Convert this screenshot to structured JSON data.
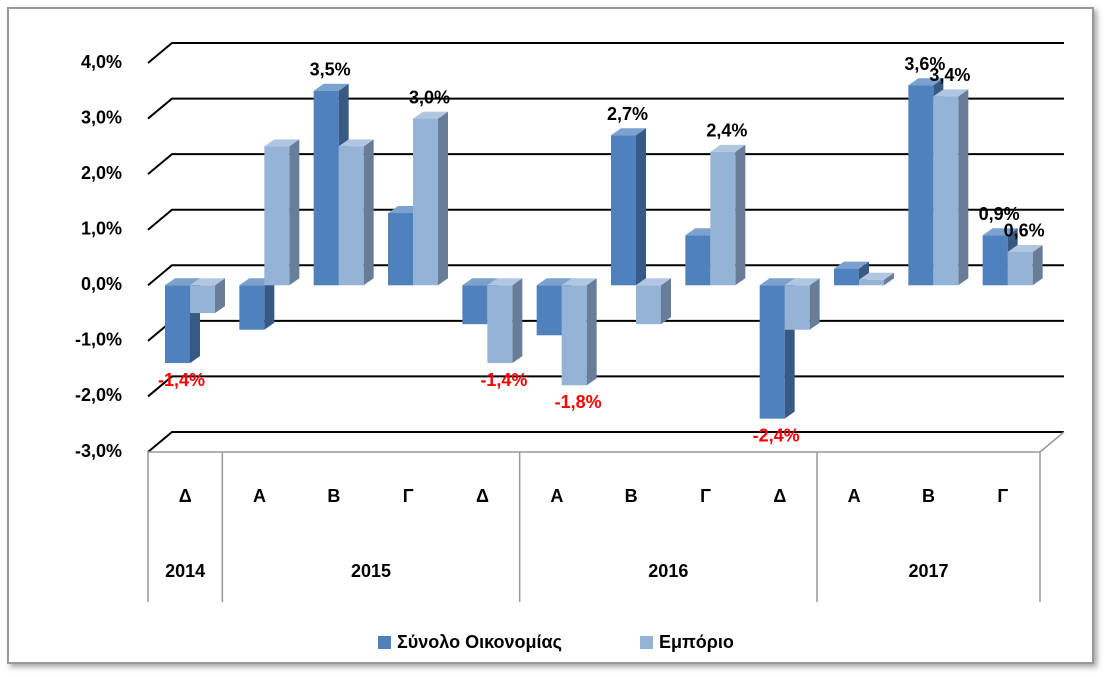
{
  "chart_data": {
    "type": "bar3d",
    "groups": [
      {
        "year": "2014",
        "quarters": [
          "Δ"
        ]
      },
      {
        "year": "2015",
        "quarters": [
          "Α",
          "Β",
          "Γ",
          "Δ"
        ]
      },
      {
        "year": "2016",
        "quarters": [
          "Α",
          "Β",
          "Γ",
          "Δ"
        ]
      },
      {
        "year": "2017",
        "quarters": [
          "Α",
          "Β",
          "Γ"
        ]
      }
    ],
    "series": [
      {
        "name": "Σύνολο Οικονομίας",
        "color": "#4f81bd",
        "values": [
          -1.4,
          -0.8,
          3.5,
          1.3,
          -0.7,
          -0.9,
          2.7,
          0.9,
          -2.4,
          0.3,
          3.6,
          0.9
        ],
        "value_labels": [
          "-1,4%",
          null,
          "3,5%",
          null,
          null,
          null,
          "2,7%",
          null,
          "-2,4%",
          null,
          "3,6%",
          "0,9%"
        ]
      },
      {
        "name": "Εμπόριο",
        "color": "#95b3d7",
        "values": [
          -0.5,
          2.5,
          2.5,
          3.0,
          -1.4,
          -1.8,
          -0.7,
          2.4,
          -0.8,
          0.1,
          3.4,
          0.6
        ],
        "value_labels": [
          null,
          null,
          null,
          "3,0%",
          "-1,4%",
          "-1,8%",
          null,
          "2,4%",
          null,
          null,
          "3,4%",
          "0,6%"
        ]
      }
    ],
    "ylim": [
      -3,
      4
    ],
    "yticks": [
      {
        "value": -3,
        "label": "-3,0%"
      },
      {
        "value": -2,
        "label": "-2,0%"
      },
      {
        "value": -1,
        "label": "-1,0%"
      },
      {
        "value": 0,
        "label": "0,0%"
      },
      {
        "value": 1,
        "label": "1,0%"
      },
      {
        "value": 2,
        "label": "2,0%"
      },
      {
        "value": 3,
        "label": "3,0%"
      },
      {
        "value": 4,
        "label": "4,0%"
      }
    ],
    "grid": true,
    "legend": "bottom",
    "positive_label_color": "#000000",
    "negative_label_color": "#ff0000"
  }
}
